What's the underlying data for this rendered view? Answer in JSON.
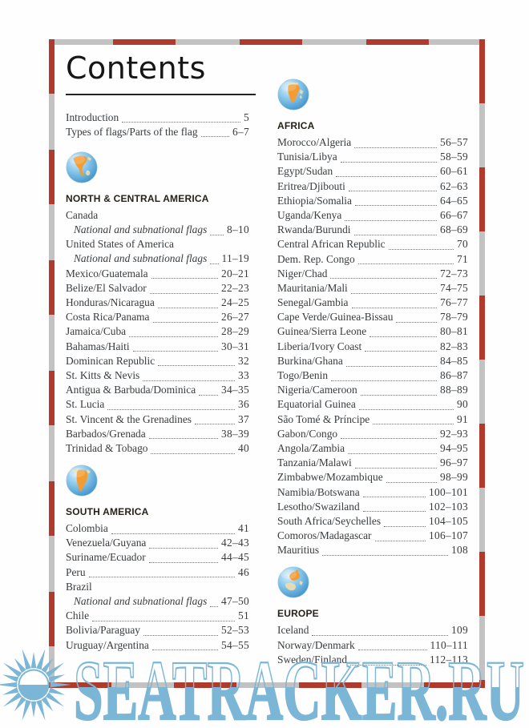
{
  "title": "Contents",
  "watermark": {
    "text": "SEATRACKER.RU",
    "color": "#7cb6d7"
  },
  "colors": {
    "border_red": "#b03a2b",
    "border_gray": "#c2c2c2",
    "body_text": "#383c3f",
    "heading_text": "#272219",
    "globe_orange": "#f49b31",
    "globe_sea": "#4596cc",
    "globe_land": "#e9dcb2"
  },
  "columns": {
    "left": [
      "intro",
      "north_central_america",
      "south_america"
    ],
    "right": [
      "africa",
      "europe"
    ]
  },
  "sections": {
    "intro": {
      "heading": null,
      "icon": null,
      "entries": [
        {
          "label": "Introduction",
          "pages": "5",
          "style": "normal"
        },
        {
          "label": "Types of flags/Parts of the flag",
          "pages": "6–7",
          "style": "normal"
        }
      ]
    },
    "north_central_america": {
      "heading": "NORTH & CENTRAL AMERICA",
      "icon": "globe-north-america-icon",
      "entries": [
        {
          "label": "Canada",
          "pages": null,
          "style": "group"
        },
        {
          "label": "National and subnational flags",
          "pages": "8–10",
          "style": "sub"
        },
        {
          "label": "United States of America",
          "pages": null,
          "style": "group"
        },
        {
          "label": "National and subnational flags",
          "pages": "11–19",
          "style": "sub"
        },
        {
          "label": "Mexico/Guatemala",
          "pages": "20–21",
          "style": "normal"
        },
        {
          "label": "Belize/El Salvador",
          "pages": "22–23",
          "style": "normal"
        },
        {
          "label": "Honduras/Nicaragua",
          "pages": "24–25",
          "style": "normal"
        },
        {
          "label": "Costa Rica/Panama",
          "pages": "26–27",
          "style": "normal"
        },
        {
          "label": "Jamaica/Cuba",
          "pages": "28–29",
          "style": "normal"
        },
        {
          "label": "Bahamas/Haiti",
          "pages": "30–31",
          "style": "normal"
        },
        {
          "label": "Dominican Republic",
          "pages": "32",
          "style": "normal"
        },
        {
          "label": "St. Kitts & Nevis",
          "pages": "33",
          "style": "normal"
        },
        {
          "label": "Antigua & Barbuda/Dominica",
          "pages": "34–35",
          "style": "normal"
        },
        {
          "label": "St. Lucia",
          "pages": "36",
          "style": "normal"
        },
        {
          "label": "St. Vincent & the Grenadines",
          "pages": "37",
          "style": "normal"
        },
        {
          "label": "Barbados/Grenada",
          "pages": "38–39",
          "style": "normal"
        },
        {
          "label": "Trinidad & Tobago",
          "pages": "40",
          "style": "normal"
        }
      ]
    },
    "south_america": {
      "heading": "SOUTH AMERICA",
      "icon": "globe-south-america-icon",
      "entries": [
        {
          "label": "Colombia",
          "pages": "41",
          "style": "normal"
        },
        {
          "label": "Venezuela/Guyana",
          "pages": "42–43",
          "style": "normal"
        },
        {
          "label": "Suriname/Ecuador",
          "pages": "44–45",
          "style": "normal"
        },
        {
          "label": "Peru",
          "pages": "46",
          "style": "normal"
        },
        {
          "label": "Brazil",
          "pages": null,
          "style": "group"
        },
        {
          "label": "National and subnational flags",
          "pages": "47–50",
          "style": "sub"
        },
        {
          "label": "Chile",
          "pages": "51",
          "style": "normal"
        },
        {
          "label": "Bolivia/Paraguay",
          "pages": "52–53",
          "style": "normal"
        },
        {
          "label": "Uruguay/Argentina",
          "pages": "54–55",
          "style": "normal"
        }
      ]
    },
    "africa": {
      "heading": "AFRICA",
      "icon": "globe-africa-icon",
      "entries": [
        {
          "label": "Morocco/Algeria",
          "pages": "56–57",
          "style": "normal"
        },
        {
          "label": "Tunisia/Libya",
          "pages": "58–59",
          "style": "normal"
        },
        {
          "label": "Egypt/Sudan",
          "pages": "60–61",
          "style": "normal"
        },
        {
          "label": "Eritrea/Djibouti",
          "pages": "62–63",
          "style": "normal"
        },
        {
          "label": "Ethiopia/Somalia",
          "pages": "64–65",
          "style": "normal"
        },
        {
          "label": "Uganda/Kenya",
          "pages": "66–67",
          "style": "normal"
        },
        {
          "label": "Rwanda/Burundi",
          "pages": "68–69",
          "style": "normal"
        },
        {
          "label": "Central African Republic",
          "pages": "70",
          "style": "normal"
        },
        {
          "label": "Dem. Rep. Congo",
          "pages": "71",
          "style": "normal"
        },
        {
          "label": "Niger/Chad",
          "pages": "72–73",
          "style": "normal"
        },
        {
          "label": "Mauritania/Mali",
          "pages": "74–75",
          "style": "normal"
        },
        {
          "label": "Senegal/Gambia",
          "pages": "76–77",
          "style": "normal"
        },
        {
          "label": "Cape Verde/Guinea-Bissau",
          "pages": "78–79",
          "style": "normal"
        },
        {
          "label": "Guinea/Sierra Leone",
          "pages": "80–81",
          "style": "normal"
        },
        {
          "label": "Liberia/Ivory Coast",
          "pages": "82–83",
          "style": "normal"
        },
        {
          "label": "Burkina/Ghana",
          "pages": "84–85",
          "style": "normal"
        },
        {
          "label": "Togo/Benin",
          "pages": "86–87",
          "style": "normal"
        },
        {
          "label": "Nigeria/Cameroon",
          "pages": "88–89",
          "style": "normal"
        },
        {
          "label": "Equatorial Guinea",
          "pages": "90",
          "style": "normal"
        },
        {
          "label": "São Tomé & Príncipe",
          "pages": "91",
          "style": "normal"
        },
        {
          "label": "Gabon/Congo",
          "pages": "92–93",
          "style": "normal"
        },
        {
          "label": "Angola/Zambia",
          "pages": "94–95",
          "style": "normal"
        },
        {
          "label": "Tanzania/Malawi",
          "pages": "96–97",
          "style": "normal"
        },
        {
          "label": "Zimbabwe/Mozambique",
          "pages": "98–99",
          "style": "normal"
        },
        {
          "label": "Namibia/Botswana",
          "pages": "100–101",
          "style": "normal"
        },
        {
          "label": "Lesotho/Swaziland",
          "pages": "102–103",
          "style": "normal"
        },
        {
          "label": "South Africa/Seychelles",
          "pages": "104–105",
          "style": "normal"
        },
        {
          "label": "Comoros/Madagascar",
          "pages": "106–107",
          "style": "normal"
        },
        {
          "label": "Mauritius",
          "pages": "108",
          "style": "normal"
        }
      ]
    },
    "europe": {
      "heading": "EUROPE",
      "icon": "globe-europe-icon",
      "entries": [
        {
          "label": "Iceland",
          "pages": "109",
          "style": "normal"
        },
        {
          "label": "Norway/Denmark",
          "pages": "110–111",
          "style": "normal"
        },
        {
          "label": "Sweden/Finland",
          "pages": "112–113",
          "style": "normal"
        }
      ]
    }
  }
}
